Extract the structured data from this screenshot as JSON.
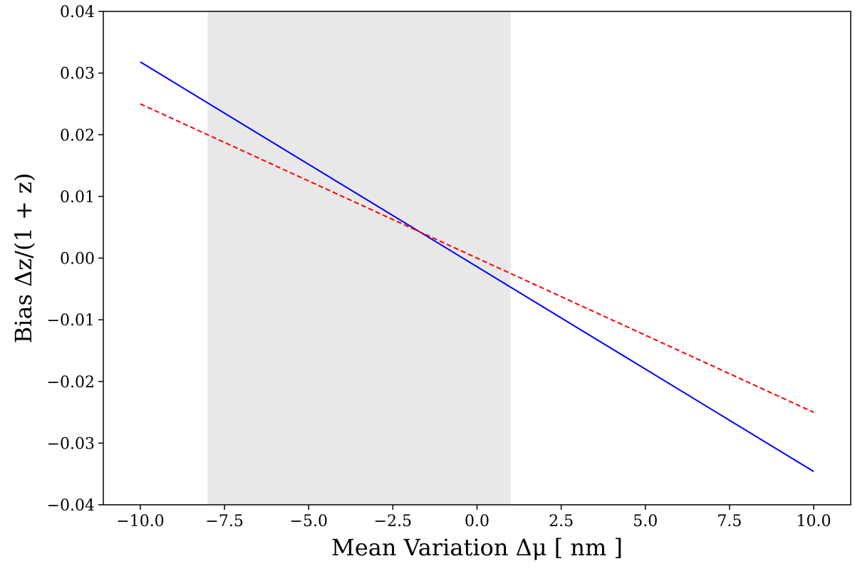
{
  "chart_data": {
    "type": "line",
    "title": "",
    "xlabel": "Mean Variation Δμ [ nm ]",
    "ylabel": "Bias Δz/(1 + z)",
    "xlim": [
      -11.1,
      11.1
    ],
    "ylim": [
      -0.04,
      0.04
    ],
    "x_ticks": [
      -10.0,
      -7.5,
      -5.0,
      -2.5,
      0.0,
      2.5,
      5.0,
      7.5,
      10.0
    ],
    "x_tick_labels": [
      "−10.0",
      "−7.5",
      "−5.0",
      "−2.5",
      "0.0",
      "2.5",
      "5.0",
      "7.5",
      "10.0"
    ],
    "y_ticks": [
      -0.04,
      -0.03,
      -0.02,
      -0.01,
      0.0,
      0.01,
      0.02,
      0.03,
      0.04
    ],
    "y_tick_labels": [
      "−0.04",
      "−0.03",
      "−0.02",
      "−0.01",
      "0.00",
      "0.01",
      "0.02",
      "0.03",
      "0.04"
    ],
    "shaded_region": {
      "x": [
        -8.0,
        1.0
      ],
      "color": "#e8e8e8"
    },
    "grid": false,
    "series": [
      {
        "x": [
          -10.0,
          10.0
        ],
        "y": [
          0.0318,
          -0.0346
        ],
        "color": "#0000ff",
        "style": "solid"
      },
      {
        "x": [
          -10.0,
          10.0
        ],
        "y": [
          0.025,
          -0.025
        ],
        "color": "#ff0000",
        "style": "dashed"
      }
    ]
  }
}
